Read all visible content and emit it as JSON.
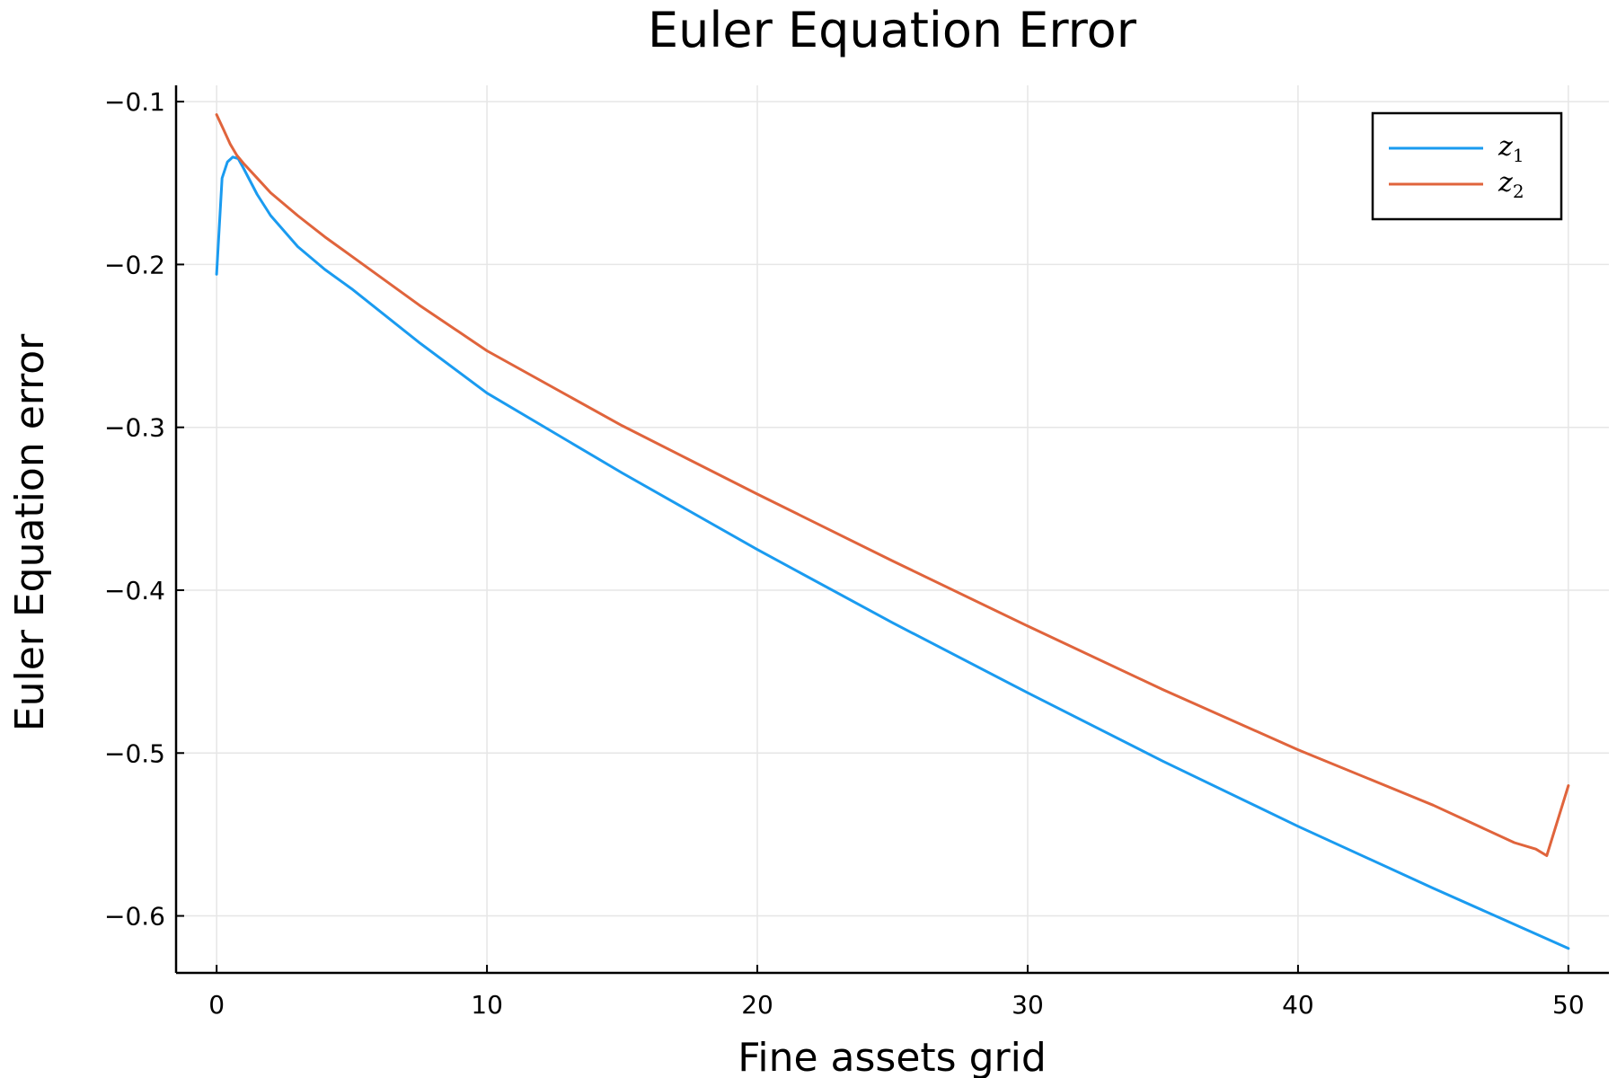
{
  "chart_data": {
    "type": "line",
    "title": "Euler Equation Error",
    "xlabel": "Fine assets grid",
    "ylabel": "Euler Equation error",
    "xlim": [
      -1.5,
      51.5
    ],
    "ylim": [
      -0.635,
      -0.09
    ],
    "xticks": [
      0,
      10,
      20,
      30,
      40,
      50
    ],
    "xtick_labels": [
      "0",
      "10",
      "20",
      "30",
      "40",
      "50"
    ],
    "yticks": [
      -0.1,
      -0.2,
      -0.3,
      -0.4,
      -0.5,
      -0.6
    ],
    "ytick_labels": [
      "−0.1",
      "−0.2",
      "−0.3",
      "−0.4",
      "−0.5",
      "−0.6"
    ],
    "grid": true,
    "legend_position": "top-right",
    "series": [
      {
        "name": "z",
        "subscript": "1",
        "color": "#1a9bf0",
        "x": [
          0,
          0.2,
          0.4,
          0.6,
          0.8,
          1,
          1.5,
          2,
          3,
          4,
          5,
          7.5,
          10,
          15,
          20,
          25,
          30,
          35,
          40,
          45,
          50
        ],
        "y": [
          -0.206,
          -0.147,
          -0.137,
          -0.134,
          -0.135,
          -0.141,
          -0.157,
          -0.17,
          -0.189,
          -0.203,
          -0.215,
          -0.248,
          -0.279,
          -0.328,
          -0.375,
          -0.42,
          -0.463,
          -0.505,
          -0.545,
          -0.583,
          -0.62
        ]
      },
      {
        "name": "z",
        "subscript": "2",
        "color": "#e0643c",
        "x": [
          0,
          0.25,
          0.5,
          0.75,
          1,
          1.5,
          2,
          3,
          4,
          5,
          7.5,
          10,
          15,
          20,
          25,
          30,
          35,
          40,
          45,
          48,
          48.8,
          49.2,
          50
        ],
        "y": [
          -0.108,
          -0.117,
          -0.126,
          -0.133,
          -0.138,
          -0.147,
          -0.156,
          -0.17,
          -0.183,
          -0.195,
          -0.225,
          -0.253,
          -0.299,
          -0.341,
          -0.382,
          -0.422,
          -0.461,
          -0.498,
          -0.532,
          -0.555,
          -0.559,
          -0.563,
          -0.52
        ]
      }
    ]
  }
}
